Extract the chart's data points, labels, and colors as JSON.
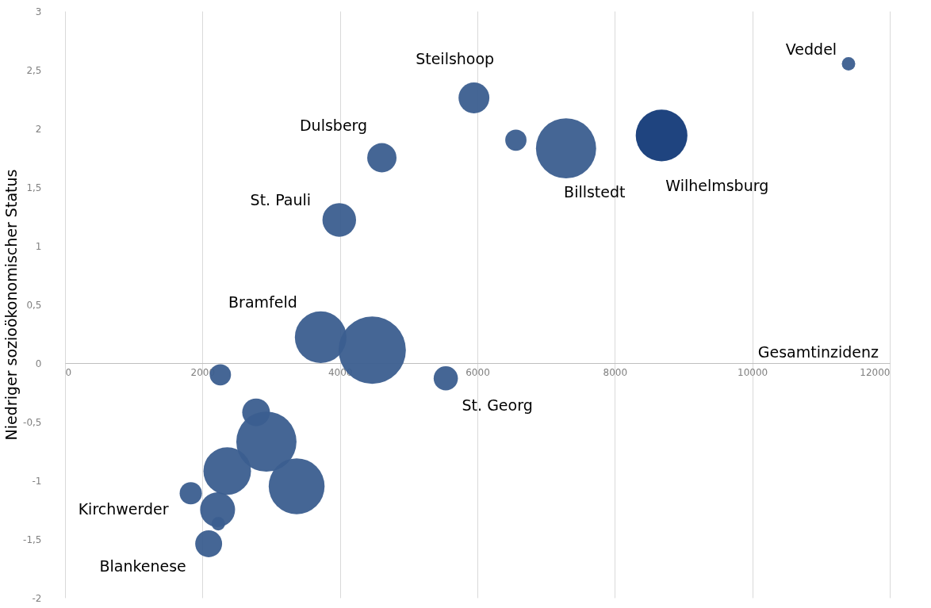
{
  "chart_data": {
    "type": "bubble",
    "ylabel": "Niedriger sozioökonomischer Status",
    "xlabel": "Gesamtinzidenz",
    "x": [
      11400,
      5950,
      6560,
      7290,
      8680,
      4610,
      3990,
      3720,
      4470,
      5540,
      2260,
      2780,
      2930,
      2360,
      3370,
      1830,
      2220,
      2230,
      2090
    ],
    "values": [
      2.55,
      2.26,
      1.9,
      1.83,
      1.94,
      1.75,
      1.22,
      0.22,
      0.11,
      -0.13,
      -0.1,
      -0.42,
      -0.67,
      -0.92,
      -1.05,
      -1.11,
      -1.25,
      -1.37,
      -1.54
    ],
    "sizes": [
      0.04,
      0.21,
      0.1,
      0.8,
      0.59,
      0.19,
      0.25,
      0.59,
      1,
      0.13,
      0.1,
      0.17,
      0.8,
      0.5,
      0.69,
      0.11,
      0.27,
      0.04,
      0.16
    ],
    "colors": [
      "#3b5e8f",
      "#3b5e8f",
      "#3b5e8f",
      "#3b5e8f",
      "#133a78",
      "#3b5e8f",
      "#3b5e8f",
      "#3b5e8f",
      "#3b5e8f",
      "#3b5e8f",
      "#3b5e8f",
      "#3b5e8f",
      "#3b5e8f",
      "#3b5e8f",
      "#3b5e8f",
      "#3b5e8f",
      "#3b5e8f",
      "#3b5e8f",
      "#3b5e8f"
    ],
    "xlim": [
      0,
      12000
    ],
    "xticks": [
      0,
      2000,
      4000,
      6000,
      8000,
      10000,
      12000
    ],
    "ylim": [
      -2,
      3
    ],
    "yticks": [
      -2,
      {
        "value": -1.5,
        "label": "-1,5"
      },
      -1,
      {
        "value": -0.5,
        "label": "-0,5"
      },
      0,
      {
        "value": 0.5,
        "label": "0,5"
      },
      1,
      {
        "value": 1.5,
        "label": "1,5"
      },
      2,
      {
        "value": 2.5,
        "label": "2,5"
      },
      3
    ],
    "grid": "x",
    "legend": false,
    "annotations": [
      {
        "text": "Veddel",
        "x": 11400,
        "y": 2.55
      },
      {
        "text": "Steilshoop",
        "x": 5950,
        "y": 2.26
      },
      {
        "text": "Dulsberg",
        "x": 4610,
        "y": 1.75
      },
      {
        "text": "St. Pauli",
        "x": 3990,
        "y": 1.22
      },
      {
        "text": "Bramfeld",
        "x": 3720,
        "y": 0.22
      },
      {
        "text": "Billstedt",
        "x": 7290,
        "y": 1.83
      },
      {
        "text": "Wilhelmsburg",
        "x": 8680,
        "y": 1.94
      },
      {
        "text": "St. Georg",
        "x": 5540,
        "y": -0.13
      },
      {
        "text": "Kirchwerder",
        "x": 1830,
        "y": -1.11
      },
      {
        "text": "Blankenese",
        "x": 2090,
        "y": -1.54
      }
    ]
  }
}
